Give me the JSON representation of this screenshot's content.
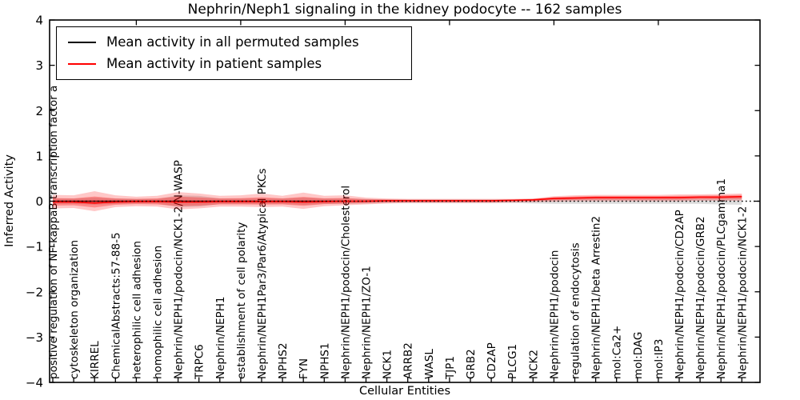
{
  "chart_data": {
    "type": "line",
    "title": "Nephrin/Neph1 signaling in the kidney podocyte -- 162 samples",
    "xlabel": "Cellular Entities",
    "ylabel": "Inferred Activity",
    "ylim": [
      -4,
      4
    ],
    "yticks": [
      4,
      3,
      2,
      1,
      0,
      -1,
      -2,
      -3,
      -4
    ],
    "top_tick_positions": [
      5,
      10,
      15,
      20,
      25,
      30
    ],
    "grid": false,
    "legend_position": "upper left",
    "zero_line": {
      "style": "dotted",
      "color": "#000000",
      "y": 0
    },
    "categories": [
      "positive regulation of NF-kappaB transcription factor a",
      "cytoskeleton organization",
      "KIRREL",
      "ChemicalAbstracts:57-88-5",
      "heterophilic cell adhesion",
      "homophilic cell adhesion",
      "Nephrin/NEPH1/podocin/NCK1-2/N-WASP",
      "TRPC6",
      "Nephrin/NEPH1",
      "establishment of cell polarity",
      "Nephrin/NEPH1Par3/Par6/Atypical PKCs",
      "NPHS2",
      "FYN",
      "NPHS1",
      "Nephrin/NEPH1/podocin/Cholesterol",
      "Nephrin/NEPH1/ZO-1",
      "NCK1",
      "ARRB2",
      "WASL",
      "TJP1",
      "GRB2",
      "CD2AP",
      "PLCG1",
      "NCK2",
      "Nephrin/NEPH1/podocin",
      "regulation of endocytosis",
      "Nephrin/NEPH1/beta Arrestin2",
      "mol:Ca2+",
      "mol:DAG",
      "mol:IP3",
      "Nephrin/NEPH1/podocin/CD2AP",
      "Nephrin/NEPH1/podocin/GRB2",
      "Nephrin/NEPH1/podocin/PLCgamma1",
      "Nephrin/NEPH1/podocin/NCK1-2"
    ],
    "series": [
      {
        "name": "Mean activity in all permuted samples",
        "color": "#000000",
        "values": [
          0,
          0,
          0,
          0,
          0,
          0,
          0,
          0,
          0,
          0,
          0,
          0,
          0,
          0,
          0,
          null,
          null,
          null,
          null,
          null,
          null,
          null,
          null,
          null,
          null,
          null,
          null,
          null,
          null,
          null,
          null,
          null,
          null,
          null
        ],
        "band": {
          "color": "rgba(0,0,0,0.13)",
          "upper": [
            0.06,
            0.06,
            0.08,
            0.06,
            0.05,
            0.05,
            0.13,
            0.12,
            0.06,
            0.06,
            0.06,
            0.06,
            0.08,
            0.06,
            0.06,
            0.05,
            0.04,
            0.04,
            0.04,
            0.04,
            0.04,
            0.04,
            0.04,
            0.05,
            0.06,
            0.06,
            0.06,
            0.06,
            0.06,
            0.06,
            0.06,
            0.06,
            0.07,
            0.08
          ],
          "lower": [
            -0.06,
            -0.06,
            -0.08,
            -0.06,
            -0.05,
            -0.05,
            -0.13,
            -0.12,
            -0.06,
            -0.06,
            -0.06,
            -0.06,
            -0.08,
            -0.06,
            -0.06,
            -0.05,
            -0.04,
            -0.04,
            -0.04,
            -0.04,
            -0.04,
            -0.04,
            -0.04,
            -0.05,
            -0.06,
            -0.06,
            -0.06,
            -0.06,
            -0.06,
            -0.06,
            -0.06,
            -0.06,
            -0.07,
            -0.08
          ]
        }
      },
      {
        "name": "Mean activity in patient samples",
        "color": "#ff0000",
        "values": [
          -0.02,
          -0.02,
          -0.04,
          -0.02,
          -0.01,
          -0.01,
          -0.02,
          -0.02,
          -0.01,
          -0.01,
          -0.01,
          -0.01,
          -0.02,
          -0.01,
          0,
          0,
          0.01,
          0.01,
          0.01,
          0.01,
          0.01,
          0.01,
          0.02,
          0.03,
          0.06,
          0.07,
          0.08,
          0.08,
          0.08,
          0.08,
          0.08,
          0.09,
          0.09,
          0.1
        ],
        "band": {
          "color": "rgba(255,0,0,0.22)",
          "inner_color": "rgba(255,0,0,0.3)",
          "upper": [
            0.14,
            0.13,
            0.22,
            0.13,
            0.1,
            0.12,
            0.2,
            0.17,
            0.12,
            0.13,
            0.17,
            0.12,
            0.19,
            0.12,
            0.13,
            0.08,
            0.06,
            0.05,
            0.05,
            0.05,
            0.05,
            0.05,
            0.05,
            0.06,
            0.11,
            0.13,
            0.14,
            0.14,
            0.14,
            0.14,
            0.15,
            0.15,
            0.16,
            0.17
          ],
          "lower": [
            -0.16,
            -0.15,
            -0.22,
            -0.13,
            -0.11,
            -0.12,
            -0.18,
            -0.16,
            -0.12,
            -0.12,
            -0.13,
            -0.12,
            -0.17,
            -0.11,
            -0.09,
            -0.07,
            -0.05,
            -0.04,
            -0.04,
            -0.04,
            -0.04,
            -0.04,
            -0.03,
            -0.02,
            -0.01,
            0,
            0,
            0,
            0,
            0,
            0,
            0.01,
            0.01,
            0.01
          ]
        }
      }
    ]
  }
}
